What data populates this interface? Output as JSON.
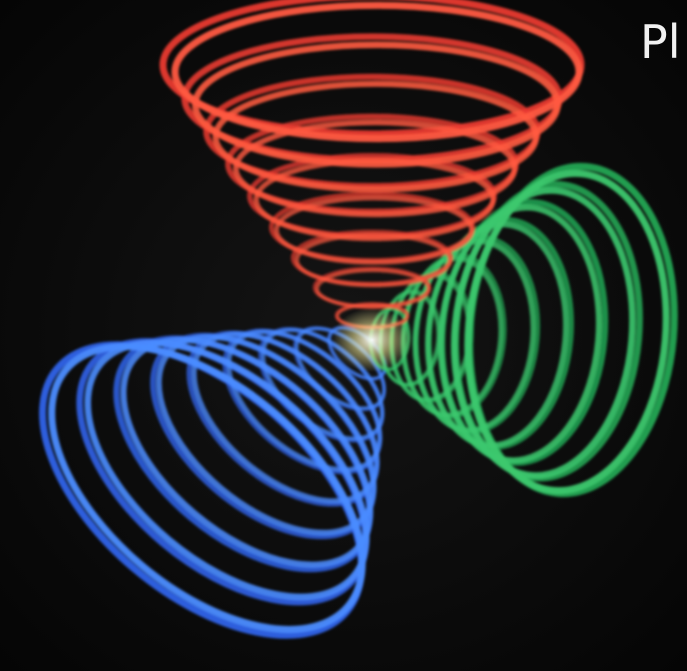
{
  "cover": {
    "title": "Pl"
  }
}
